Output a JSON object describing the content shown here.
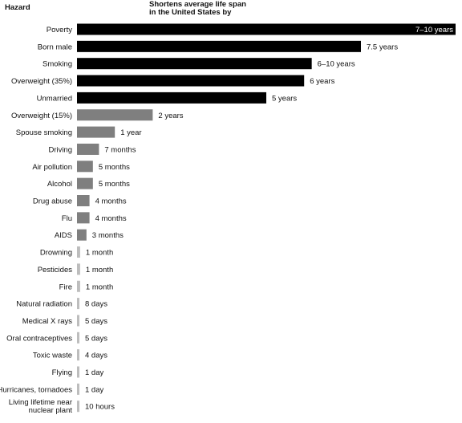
{
  "header": {
    "hazard_label": "Hazard",
    "title_line1": "Shortens average life span",
    "title_line2": "in the United States by"
  },
  "chart_data": {
    "type": "bar",
    "orientation": "horizontal",
    "xunit": "years",
    "xlim": [
      0,
      10
    ],
    "grid": false,
    "legend": "none",
    "colors": {
      "major": "#000000",
      "moderate": "#7f7f7f",
      "minor": "#bdbdbd"
    },
    "bars": [
      {
        "category": "Poverty",
        "value": 10.0,
        "label": "7–10 years",
        "tier": "major",
        "label_inside": true
      },
      {
        "category": "Born male",
        "value": 7.5,
        "label": "7.5 years",
        "tier": "major"
      },
      {
        "category": "Smoking",
        "value": 6.2,
        "label": "6–10 years",
        "tier": "major"
      },
      {
        "category": "Overweight (35%)",
        "value": 6.0,
        "label": "6 years",
        "tier": "major"
      },
      {
        "category": "Unmarried",
        "value": 5.0,
        "label": "5 years",
        "tier": "major"
      },
      {
        "category": "Overweight (15%)",
        "value": 2.0,
        "label": "2 years",
        "tier": "moderate"
      },
      {
        "category": "Spouse smoking",
        "value": 1.0,
        "label": "1 year",
        "tier": "moderate"
      },
      {
        "category": "Driving",
        "value": 0.58,
        "label": "7 months",
        "tier": "moderate"
      },
      {
        "category": "Air pollution",
        "value": 0.42,
        "label": "5 months",
        "tier": "moderate"
      },
      {
        "category": "Alcohol",
        "value": 0.42,
        "label": "5 months",
        "tier": "moderate"
      },
      {
        "category": "Drug abuse",
        "value": 0.33,
        "label": "4 months",
        "tier": "moderate"
      },
      {
        "category": "Flu",
        "value": 0.33,
        "label": "4 months",
        "tier": "moderate"
      },
      {
        "category": "AIDS",
        "value": 0.25,
        "label": "3 months",
        "tier": "moderate"
      },
      {
        "category": "Drowning",
        "value": 0.083,
        "label": "1 month",
        "tier": "minor"
      },
      {
        "category": "Pesticides",
        "value": 0.083,
        "label": "1 month",
        "tier": "minor"
      },
      {
        "category": "Fire",
        "value": 0.083,
        "label": "1 month",
        "tier": "minor"
      },
      {
        "category": "Natural radiation",
        "value": 0.022,
        "label": "8 days",
        "tier": "minor"
      },
      {
        "category": "Medical X rays",
        "value": 0.014,
        "label": "5 days",
        "tier": "minor"
      },
      {
        "category": "Oral contraceptives",
        "value": 0.014,
        "label": "5 days",
        "tier": "minor"
      },
      {
        "category": "Toxic waste",
        "value": 0.011,
        "label": "4 days",
        "tier": "minor"
      },
      {
        "category": "Flying",
        "value": 0.003,
        "label": "1 day",
        "tier": "minor"
      },
      {
        "category": "Hurricanes, tornadoes",
        "value": 0.003,
        "label": "1 day",
        "tier": "minor"
      },
      {
        "category": [
          "Living lifetime near",
          "nuclear plant"
        ],
        "value": 0.001,
        "label": "10 hours",
        "tier": "minor"
      }
    ]
  }
}
